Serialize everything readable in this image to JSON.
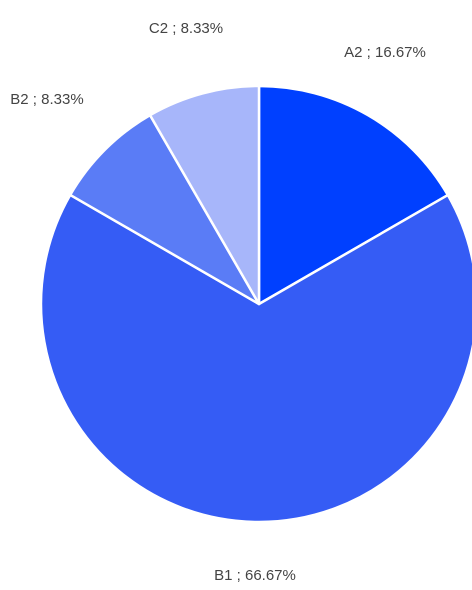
{
  "chart_data": {
    "type": "pie",
    "start_angle_deg": 0,
    "direction": "clockwise",
    "label_separator": " ; ",
    "slices": [
      {
        "label": "A2",
        "value": 16.67,
        "display": "16.67%",
        "color": "#0040ff"
      },
      {
        "label": "B1",
        "value": 66.67,
        "display": "66.67%",
        "color": "#355cf5"
      },
      {
        "label": "B2",
        "value": 8.33,
        "display": "8.33%",
        "color": "#5a7cf6"
      },
      {
        "label": "C2",
        "value": 8.33,
        "display": "8.33%",
        "color": "#a7b6fa"
      }
    ]
  }
}
